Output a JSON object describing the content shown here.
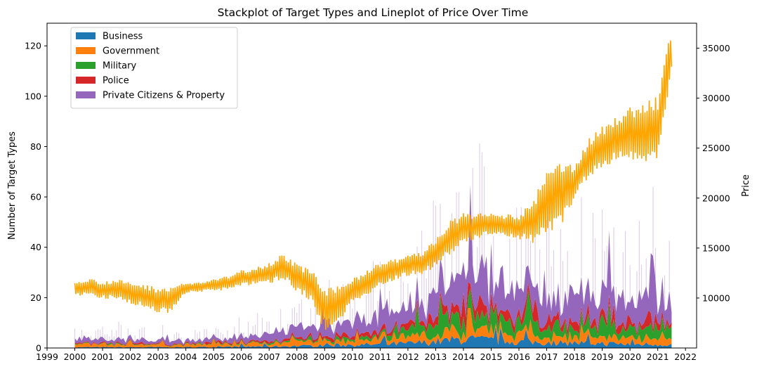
{
  "chart_data": {
    "type": "area",
    "title": "Stackplot of Target Types and Lineplot of Price Over Time",
    "xlabel": "",
    "ylabel": "Number of Target Types",
    "y2label": "Price",
    "xlim": [
      1999.0,
      2022.4
    ],
    "ylim": [
      0,
      129
    ],
    "y2lim": [
      5000,
      37500
    ],
    "x_ticks": [
      "1999",
      "2000",
      "2001",
      "2002",
      "2003",
      "2004",
      "2005",
      "2006",
      "2007",
      "2008",
      "2009",
      "2010",
      "2011",
      "2012",
      "2013",
      "2014",
      "2015",
      "2016",
      "2017",
      "2018",
      "2019",
      "2020",
      "2021",
      "2022"
    ],
    "y_ticks": [
      0,
      20,
      40,
      60,
      80,
      100,
      120
    ],
    "y2_ticks": [
      10000,
      15000,
      20000,
      25000,
      30000,
      35000
    ],
    "legend_position": "upper-left",
    "grid": false,
    "series": [
      {
        "name": "Business",
        "color": "#1f77b4",
        "x": [
          2000,
          2001,
          2002,
          2003,
          2004,
          2005,
          2006,
          2007,
          2008,
          2009,
          2010,
          2011,
          2012,
          2013,
          2014,
          2015,
          2016,
          2017,
          2018,
          2019,
          2020,
          2021,
          2021.5
        ],
        "values": [
          0.3,
          0.3,
          0.3,
          0.3,
          0.3,
          0.4,
          0.5,
          0.6,
          0.8,
          1.0,
          1.2,
          1.4,
          1.8,
          2.5,
          3.5,
          3.0,
          2.5,
          2.2,
          2.0,
          1.8,
          1.5,
          1.5,
          1.4
        ]
      },
      {
        "name": "Government",
        "color": "#ff7f0e",
        "x": [
          2000,
          2001,
          2002,
          2003,
          2004,
          2005,
          2006,
          2007,
          2008,
          2009,
          2010,
          2011,
          2012,
          2013,
          2014,
          2015,
          2016,
          2017,
          2018,
          2019,
          2020,
          2021,
          2021.5
        ],
        "values": [
          1.0,
          1.0,
          1.0,
          0.9,
          0.9,
          1.0,
          1.1,
          1.3,
          1.6,
          1.8,
          2.0,
          2.2,
          2.6,
          3.0,
          3.5,
          3.2,
          3.0,
          2.8,
          2.6,
          2.5,
          2.3,
          2.3,
          2.2
        ]
      },
      {
        "name": "Military",
        "color": "#2ca02c",
        "x": [
          2000,
          2001,
          2002,
          2003,
          2004,
          2005,
          2006,
          2007,
          2008,
          2009,
          2010,
          2011,
          2012,
          2013,
          2014,
          2015,
          2016,
          2017,
          2018,
          2019,
          2020,
          2021,
          2021.5
        ],
        "values": [
          0.2,
          0.2,
          0.2,
          0.2,
          0.2,
          0.2,
          0.3,
          0.4,
          0.5,
          0.6,
          0.8,
          1.2,
          2.5,
          4.5,
          6.5,
          5.5,
          4.5,
          4.0,
          4.0,
          3.8,
          3.5,
          4.0,
          4.0
        ]
      },
      {
        "name": "Police",
        "color": "#d62728",
        "x": [
          2000,
          2001,
          2002,
          2003,
          2004,
          2005,
          2006,
          2007,
          2008,
          2009,
          2010,
          2011,
          2012,
          2013,
          2014,
          2015,
          2016,
          2017,
          2018,
          2019,
          2020,
          2021,
          2021.5
        ],
        "values": [
          0.3,
          0.3,
          0.3,
          0.3,
          0.3,
          0.4,
          0.5,
          0.6,
          0.8,
          1.0,
          1.2,
          1.5,
          2.0,
          3.0,
          4.0,
          3.5,
          3.0,
          2.8,
          2.6,
          2.5,
          2.3,
          2.4,
          2.3
        ]
      },
      {
        "name": "Private Citizens & Property",
        "color": "#9467bd",
        "x": [
          2000,
          2001,
          2002,
          2003,
          2004,
          2005,
          2006,
          2007,
          2008,
          2009,
          2010,
          2011,
          2012,
          2013,
          2014,
          2015,
          2016,
          2017,
          2018,
          2019,
          2020,
          2021,
          2021.5
        ],
        "values": [
          1.5,
          1.5,
          1.5,
          1.3,
          1.2,
          1.4,
          2.0,
          2.6,
          3.5,
          4.5,
          5.0,
          5.5,
          7.0,
          9.0,
          14.0,
          12.0,
          10.0,
          9.5,
          9.0,
          8.5,
          8.0,
          8.5,
          8.0
        ]
      }
    ],
    "price": {
      "name": "Price",
      "color": "#ffa500",
      "x": [
        2000,
        2000.5,
        2001,
        2001.5,
        2002,
        2002.5,
        2003,
        2003.5,
        2004,
        2004.5,
        2005,
        2005.5,
        2006,
        2006.5,
        2007,
        2007.5,
        2008,
        2008.5,
        2009,
        2009.5,
        2010,
        2010.5,
        2011,
        2011.5,
        2012,
        2012.5,
        2013,
        2013.5,
        2014,
        2014.5,
        2015,
        2015.5,
        2016,
        2016.5,
        2017,
        2017.5,
        2018,
        2018.5,
        2019,
        2019.5,
        2020,
        2020.5,
        2021,
        2021.5
      ],
      "values": [
        11000,
        11100,
        10800,
        10900,
        10500,
        10200,
        9800,
        9900,
        11000,
        11100,
        11300,
        11500,
        12000,
        12200,
        12500,
        13200,
        12000,
        11400,
        8800,
        9200,
        10800,
        11500,
        12400,
        12800,
        13300,
        13500,
        14500,
        16000,
        17000,
        17200,
        17400,
        17300,
        17100,
        17600,
        19500,
        20400,
        21600,
        24000,
        25000,
        26000,
        26500,
        26500,
        27000,
        34700
      ],
      "swing": [
        800,
        900,
        900,
        1000,
        1100,
        1200,
        1300,
        1400,
        500,
        500,
        600,
        700,
        800,
        900,
        1100,
        1300,
        1400,
        1700,
        2100,
        2000,
        1300,
        1300,
        1200,
        1100,
        1100,
        1100,
        1500,
        1700,
        1500,
        1300,
        1100,
        1100,
        1200,
        2200,
        3200,
        3200,
        1900,
        1900,
        2200,
        2200,
        2600,
        3200,
        3200,
        2600
      ]
    }
  }
}
